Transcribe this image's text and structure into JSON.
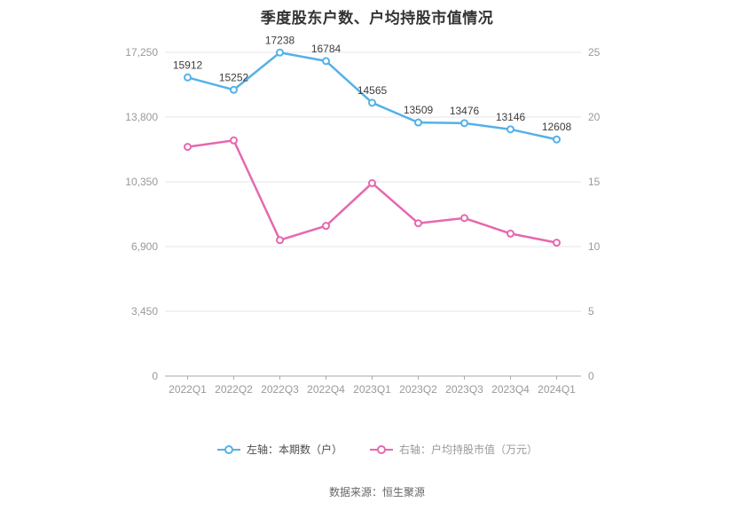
{
  "title": "季度股东户数、户均持股市值情况",
  "footer": {
    "source": "数据来源：恒生聚源"
  },
  "legend": {
    "items": [
      {
        "slug": "shareholder-count",
        "label": "左轴：本期数（户）",
        "color": "#55b1e8",
        "text_color": "#4d4d4d"
      },
      {
        "slug": "per-capita-market-value",
        "label": "右轴：户均持股市值（万元）",
        "color": "#e668ae",
        "text_color": "#999999"
      }
    ]
  },
  "chart_data": {
    "type": "line",
    "title": "季度股东户数、户均持股市值情况",
    "categories": [
      "2022Q1",
      "2022Q2",
      "2022Q3",
      "2022Q4",
      "2023Q1",
      "2023Q2",
      "2023Q3",
      "2023Q4",
      "2024Q1"
    ],
    "series": [
      {
        "name": "左轴：本期数（户）",
        "slug": "shareholder-count",
        "yaxis": "left",
        "color": "#55b1e8",
        "values": [
          15912,
          15252,
          17238,
          16784,
          14565,
          13509,
          13476,
          13146,
          12608
        ],
        "show_data_labels": true
      },
      {
        "name": "右轴：户均持股市值（万元）",
        "slug": "per-capita-market-value",
        "yaxis": "right",
        "color": "#e668ae",
        "values": [
          17.7,
          18.2,
          10.5,
          11.6,
          14.9,
          11.8,
          12.2,
          11.0,
          10.3
        ],
        "show_data_labels": false
      }
    ],
    "left_axis": {
      "min": 0,
      "max": 17250,
      "tick_labels": [
        "0",
        "3,450",
        "6,900",
        "10,350",
        "13,800",
        "17,250"
      ]
    },
    "right_axis": {
      "min": 0,
      "max": 25,
      "tick_labels": [
        "0",
        "5",
        "10",
        "15",
        "20",
        "25"
      ]
    },
    "grid": true,
    "legend_position": "bottom",
    "colors": {
      "grid": "#e4e4ec",
      "axis": "#aaaaaa",
      "tick_text": "#999999",
      "data_label": "#3d3d3d",
      "background": "#ffffff"
    }
  }
}
